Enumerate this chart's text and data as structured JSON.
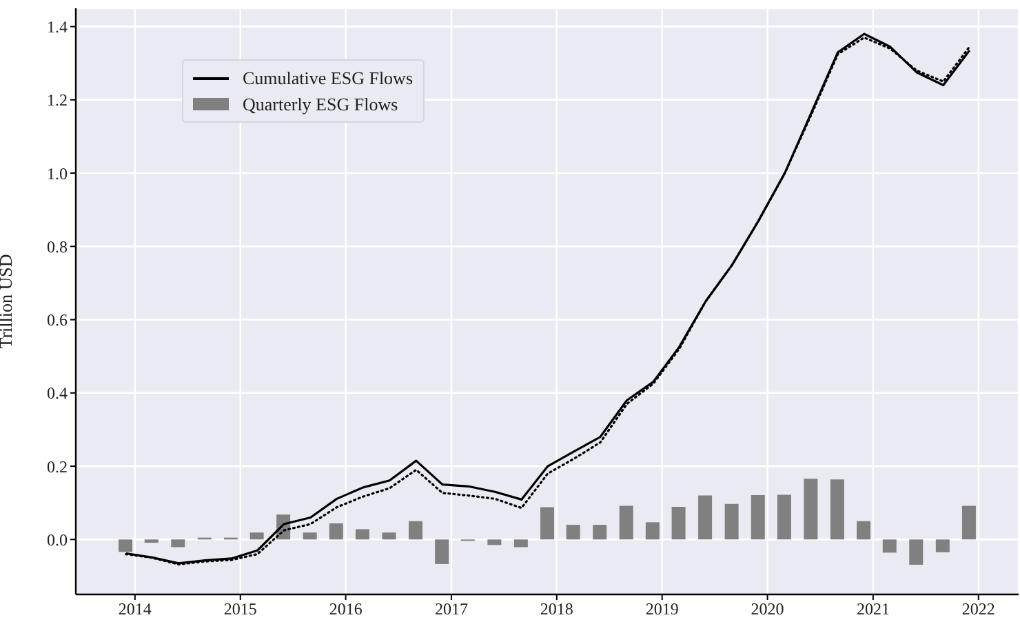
{
  "chart_data": {
    "type": "line",
    "ylabel": "Trillion USD",
    "x": [
      "2013-12",
      "2014-03",
      "2014-06",
      "2014-09",
      "2014-12",
      "2015-03",
      "2015-06",
      "2015-09",
      "2015-12",
      "2016-03",
      "2016-06",
      "2016-09",
      "2016-12",
      "2017-03",
      "2017-06",
      "2017-09",
      "2017-12",
      "2018-03",
      "2018-06",
      "2018-09",
      "2018-12",
      "2019-03",
      "2019-06",
      "2019-09",
      "2019-12",
      "2020-03",
      "2020-06",
      "2020-09",
      "2020-12",
      "2021-03",
      "2021-06",
      "2021-09",
      "2021-12"
    ],
    "series": [
      {
        "name": "Cumulative ESG Flows",
        "color": "#000000",
        "line_style": "solid",
        "values": [
          -0.038,
          -0.049,
          -0.065,
          -0.057,
          -0.052,
          -0.03,
          0.042,
          0.06,
          0.111,
          0.142,
          0.161,
          0.215,
          0.15,
          0.145,
          0.13,
          0.109,
          0.2,
          0.24,
          0.28,
          0.38,
          0.43,
          0.525,
          0.65,
          0.75,
          0.87,
          1.0,
          1.165,
          1.33,
          1.38,
          1.345,
          1.275,
          1.24,
          1.335
        ]
      },
      {
        "color": "#000000",
        "line_style": "dotted",
        "values": [
          -0.04,
          -0.05,
          -0.068,
          -0.06,
          -0.056,
          -0.04,
          0.025,
          0.042,
          0.088,
          0.117,
          0.14,
          0.19,
          0.127,
          0.12,
          0.111,
          0.086,
          0.18,
          0.22,
          0.265,
          0.37,
          0.425,
          0.52,
          0.65,
          0.75,
          0.87,
          1.0,
          1.16,
          1.325,
          1.37,
          1.34,
          1.28,
          1.25,
          1.345
        ]
      },
      {
        "name": "Quarterly ESG Flows",
        "type": "bar",
        "color": "#808080",
        "values": [
          -0.034,
          -0.009,
          -0.021,
          0.005,
          0.005,
          0.019,
          0.068,
          0.019,
          0.044,
          0.028,
          0.019,
          0.05,
          -0.067,
          -0.003,
          -0.015,
          -0.021,
          0.088,
          0.04,
          0.04,
          0.092,
          0.047,
          0.089,
          0.12,
          0.097,
          0.121,
          0.122,
          0.166,
          0.164,
          0.05,
          -0.036,
          -0.069,
          -0.035,
          0.092
        ]
      }
    ],
    "xlim": [
      "2013-06-10",
      "2022-05-20"
    ],
    "xticks": [
      "2014",
      "2015",
      "2016",
      "2017",
      "2018",
      "2019",
      "2020",
      "2021",
      "2022"
    ],
    "ylim": [
      -0.15,
      1.45
    ],
    "yticks": [
      {
        "value": 0,
        "label": "0.0"
      },
      {
        "value": 0.2,
        "label": "0.2"
      },
      {
        "value": 0.4,
        "label": "0.4"
      },
      {
        "value": 0.6,
        "label": "0.6"
      },
      {
        "value": 0.8,
        "label": "0.8"
      },
      {
        "value": 1.0,
        "label": "1.0"
      },
      {
        "value": 1.2,
        "label": "1.2"
      },
      {
        "value": 1.4,
        "label": "1.4"
      }
    ],
    "grid": true,
    "legend": "top left"
  }
}
